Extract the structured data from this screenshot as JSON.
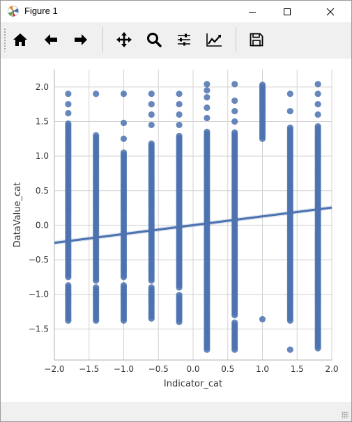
{
  "window": {
    "title": "Figure 1"
  },
  "toolbar": {
    "buttons": [
      {
        "name": "home",
        "icon": "home-icon"
      },
      {
        "name": "back",
        "icon": "arrow-left-icon"
      },
      {
        "name": "forward",
        "icon": "arrow-right-icon"
      },
      {
        "name": "pan",
        "icon": "move-icon"
      },
      {
        "name": "zoom",
        "icon": "search-icon"
      },
      {
        "name": "configure",
        "icon": "sliders-icon"
      },
      {
        "name": "edit-axes",
        "icon": "line-chart-icon"
      },
      {
        "name": "save",
        "icon": "floppy-disk-icon"
      }
    ]
  },
  "chart_data": {
    "type": "scatter",
    "xlabel": "Indicator_cat",
    "ylabel": "DataValue_cat",
    "xlim": [
      -2.0,
      2.0
    ],
    "ylim": [
      -1.95,
      2.25
    ],
    "xticks": [
      -2.0,
      -1.5,
      -1.0,
      -0.5,
      0.0,
      0.5,
      1.0,
      1.5,
      2.0
    ],
    "xtick_labels": [
      "−2.0",
      "−1.5",
      "−1.0",
      "−0.5",
      "0.0",
      "0.5",
      "1.0",
      "1.5",
      "2.0"
    ],
    "yticks": [
      -1.5,
      -1.0,
      -0.5,
      0.0,
      0.5,
      1.0,
      1.5,
      2.0
    ],
    "ytick_labels": [
      "−1.5",
      "−1.0",
      "−0.5",
      "0.0",
      "0.5",
      "1.0",
      "1.5",
      "2.0"
    ],
    "grid": true,
    "point_color": "#4c72b0",
    "columns": [
      {
        "x": -1.8,
        "segments": [
          [
            -1.38,
            -0.85
          ],
          [
            -0.75,
            1.48
          ]
        ],
        "extra": [
          1.62,
          1.75,
          1.9
        ]
      },
      {
        "x": -1.4,
        "segments": [
          [
            -1.38,
            -0.9
          ],
          [
            -0.8,
            1.3
          ]
        ],
        "extra": [
          1.9
        ]
      },
      {
        "x": -1.0,
        "segments": [
          [
            -1.38,
            -0.85
          ],
          [
            -0.75,
            1.05
          ]
        ],
        "extra": [
          1.25,
          1.48,
          1.9
        ]
      },
      {
        "x": -0.6,
        "segments": [
          [
            -1.35,
            -0.9
          ],
          [
            -0.8,
            1.2
          ]
        ],
        "extra": [
          1.45,
          1.6,
          1.75,
          1.9
        ]
      },
      {
        "x": -0.2,
        "segments": [
          [
            -1.4,
            -1.0
          ],
          [
            -0.9,
            1.3
          ]
        ],
        "extra": [
          1.45,
          1.6,
          1.75,
          1.9
        ]
      },
      {
        "x": 0.2,
        "segments": [
          [
            -1.8,
            1.35
          ]
        ],
        "extra": [
          1.55,
          1.7,
          1.85,
          1.95,
          2.04
        ]
      },
      {
        "x": 0.6,
        "segments": [
          [
            -1.8,
            -1.4
          ],
          [
            -1.3,
            1.35
          ]
        ],
        "extra": [
          1.5,
          1.65,
          1.8,
          2.04
        ]
      },
      {
        "x": 1.0,
        "segments": [
          [
            1.25,
            2.04
          ]
        ],
        "extra": [
          -1.36
        ]
      },
      {
        "x": 1.4,
        "segments": [
          [
            -1.38,
            1.42
          ]
        ],
        "extra": [
          -1.8,
          1.65,
          1.9
        ]
      },
      {
        "x": 1.8,
        "segments": [
          [
            -1.78,
            1.45
          ]
        ],
        "extra": [
          1.6,
          1.75,
          1.9,
          2.04
        ]
      }
    ],
    "regression": {
      "x": [
        -2.0,
        2.0
      ],
      "y": [
        -0.255,
        0.255
      ],
      "ci_halfwidth": 0.03,
      "color": "#4c72b0"
    }
  }
}
